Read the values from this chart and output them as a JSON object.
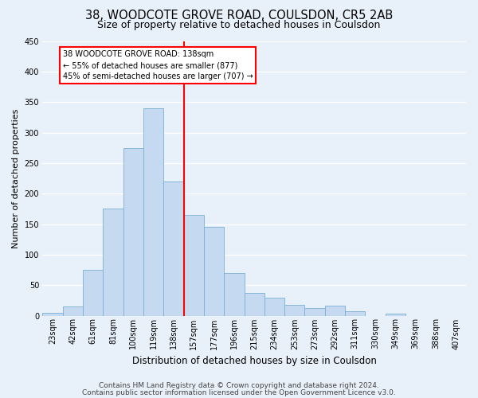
{
  "title": "38, WOODCOTE GROVE ROAD, COULSDON, CR5 2AB",
  "subtitle": "Size of property relative to detached houses in Coulsdon",
  "xlabel": "Distribution of detached houses by size in Coulsdon",
  "ylabel": "Number of detached properties",
  "bar_labels": [
    "23sqm",
    "42sqm",
    "61sqm",
    "81sqm",
    "100sqm",
    "119sqm",
    "138sqm",
    "157sqm",
    "177sqm",
    "196sqm",
    "215sqm",
    "234sqm",
    "253sqm",
    "273sqm",
    "292sqm",
    "311sqm",
    "330sqm",
    "349sqm",
    "369sqm",
    "388sqm",
    "407sqm"
  ],
  "bar_values": [
    5,
    15,
    75,
    175,
    275,
    340,
    220,
    165,
    145,
    70,
    37,
    30,
    18,
    12,
    16,
    7,
    0,
    3,
    0,
    0,
    0
  ],
  "bar_color": "#c5d9f0",
  "bar_edge_color": "#7bafd4",
  "marker_label1": "38 WOODCOTE GROVE ROAD: 138sqm",
  "marker_label2": "← 55% of detached houses are smaller (877)",
  "marker_label3": "45% of semi-detached houses are larger (707) →",
  "marker_line_color": "red",
  "annotation_box_edge": "red",
  "ylim": [
    0,
    450
  ],
  "yticks": [
    0,
    50,
    100,
    150,
    200,
    250,
    300,
    350,
    400,
    450
  ],
  "footer1": "Contains HM Land Registry data © Crown copyright and database right 2024.",
  "footer2": "Contains public sector information licensed under the Open Government Licence v3.0.",
  "bg_color": "#e8f0fa",
  "plot_bg_color": "#e8f0fa",
  "grid_color": "white",
  "title_fontsize": 10.5,
  "subtitle_fontsize": 9,
  "xlabel_fontsize": 8.5,
  "ylabel_fontsize": 8,
  "tick_fontsize": 7,
  "footer_fontsize": 6.5
}
